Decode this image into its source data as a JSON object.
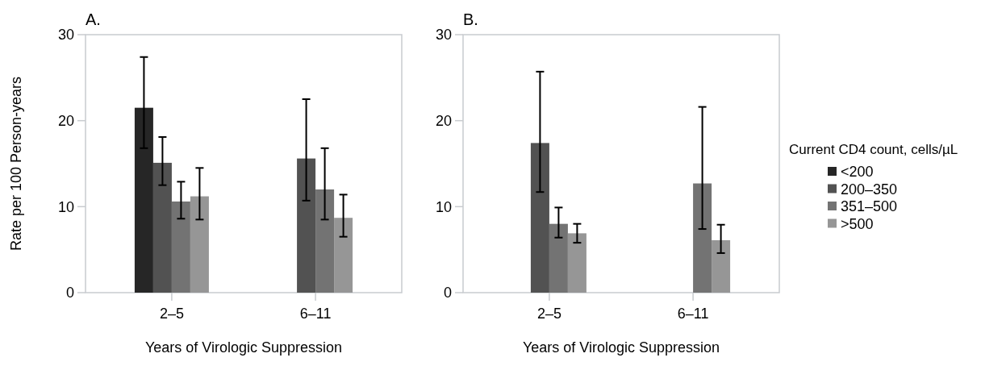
{
  "chart_data": [
    {
      "type": "bar",
      "title": "A.",
      "xlabel": "Years of Virologic Suppression",
      "ylabel": "Rate per 100 Person-years",
      "categories": [
        "2–5",
        "6–11"
      ],
      "ylim": [
        0,
        30
      ],
      "yticks": [
        0,
        10,
        20,
        30
      ],
      "grid": false,
      "legend": false,
      "series": [
        {
          "color": "#262626",
          "values": [
            21.5,
            null
          ],
          "errors": [
            [
              16.8,
              27.4
            ],
            null
          ]
        },
        {
          "color": "#525252",
          "values": [
            15.1,
            15.6
          ],
          "errors": [
            [
              12.5,
              18.1
            ],
            [
              10.7,
              22.5
            ]
          ]
        },
        {
          "color": "#737373",
          "values": [
            10.6,
            12.0
          ],
          "errors": [
            [
              8.6,
              12.9
            ],
            [
              8.5,
              16.8
            ]
          ]
        },
        {
          "color": "#969696",
          "values": [
            11.2,
            8.7
          ],
          "errors": [
            [
              8.5,
              14.5
            ],
            [
              6.5,
              11.4
            ]
          ]
        }
      ]
    },
    {
      "type": "bar",
      "title": "B.",
      "xlabel": "Years of Virologic Suppression",
      "legend_title": "Current CD4 count, cells/µL",
      "categories": [
        "2–5",
        "6–11"
      ],
      "ylim": [
        0,
        30
      ],
      "yticks": [
        0,
        10,
        20,
        30
      ],
      "grid": false,
      "legend": "right",
      "series": [
        {
          "name": "<200",
          "color": "#262626",
          "values": [
            null,
            null
          ],
          "errors": [
            null,
            null
          ]
        },
        {
          "name": "200–350",
          "color": "#525252",
          "values": [
            17.4,
            null
          ],
          "errors": [
            [
              11.7,
              25.7
            ],
            null
          ]
        },
        {
          "name": "351–500",
          "color": "#737373",
          "values": [
            8.0,
            12.7
          ],
          "errors": [
            [
              6.4,
              9.9
            ],
            [
              7.4,
              21.6
            ]
          ]
        },
        {
          "name": ">500",
          "color": "#969696",
          "values": [
            6.9,
            6.1
          ],
          "errors": [
            [
              5.8,
              8.0
            ],
            [
              4.6,
              7.9
            ]
          ]
        }
      ]
    }
  ]
}
